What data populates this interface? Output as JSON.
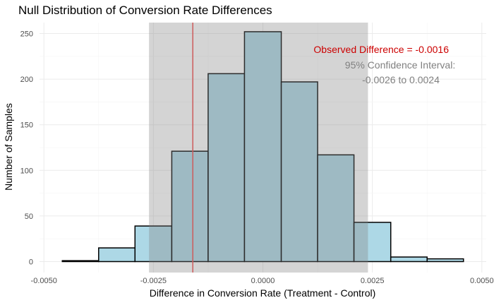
{
  "chart_data": {
    "type": "bar",
    "title": "Null Distribution of Conversion Rate Differences",
    "xlabel": "Difference in Conversion Rate (Treatment - Control)",
    "ylabel": "Number of Samples",
    "xlim": [
      -0.0051,
      0.0051
    ],
    "ylim": [
      -12,
      262
    ],
    "x_ticks": [
      -0.005,
      -0.0025,
      0,
      0.0025,
      0.005
    ],
    "x_tick_labels": [
      "-0.0050",
      "-0.0025",
      "0.0000",
      "0.0025",
      "0.0050"
    ],
    "y_ticks": [
      0,
      50,
      100,
      150,
      200,
      250
    ],
    "y_tick_labels": [
      "0",
      "50",
      "100",
      "150",
      "200",
      "250"
    ],
    "bins": [
      {
        "x0": -0.00458,
        "x1": -0.00375,
        "count": 1
      },
      {
        "x0": -0.00375,
        "x1": -0.00292,
        "count": 15
      },
      {
        "x0": -0.00292,
        "x1": -0.00208,
        "count": 39
      },
      {
        "x0": -0.00208,
        "x1": -0.00125,
        "count": 121
      },
      {
        "x0": -0.00125,
        "x1": -0.00042,
        "count": 206
      },
      {
        "x0": -0.00042,
        "x1": 0.00042,
        "count": 252
      },
      {
        "x0": 0.00042,
        "x1": 0.00125,
        "count": 197
      },
      {
        "x0": 0.00125,
        "x1": 0.00208,
        "count": 117
      },
      {
        "x0": 0.00208,
        "x1": 0.00292,
        "count": 43
      },
      {
        "x0": 0.00292,
        "x1": 0.00375,
        "count": 5
      },
      {
        "x0": 0.00375,
        "x1": 0.00458,
        "count": 3
      }
    ],
    "confidence_interval": [
      -0.0026,
      0.0024
    ],
    "observed_difference": -0.0016,
    "grid": true,
    "colors": {
      "bar_fill": "#add8e6",
      "bar_outline": "#000000",
      "ci_shade": "#808080",
      "observed_line": "#cd5c5c",
      "observed_text": "#cc0000",
      "ci_text": "#808080"
    },
    "annotations": {
      "observed": "Observed Difference = -0.0016",
      "ci_line1": "95% Confidence Interval:",
      "ci_line2": "-0.0026 to 0.0024"
    }
  }
}
